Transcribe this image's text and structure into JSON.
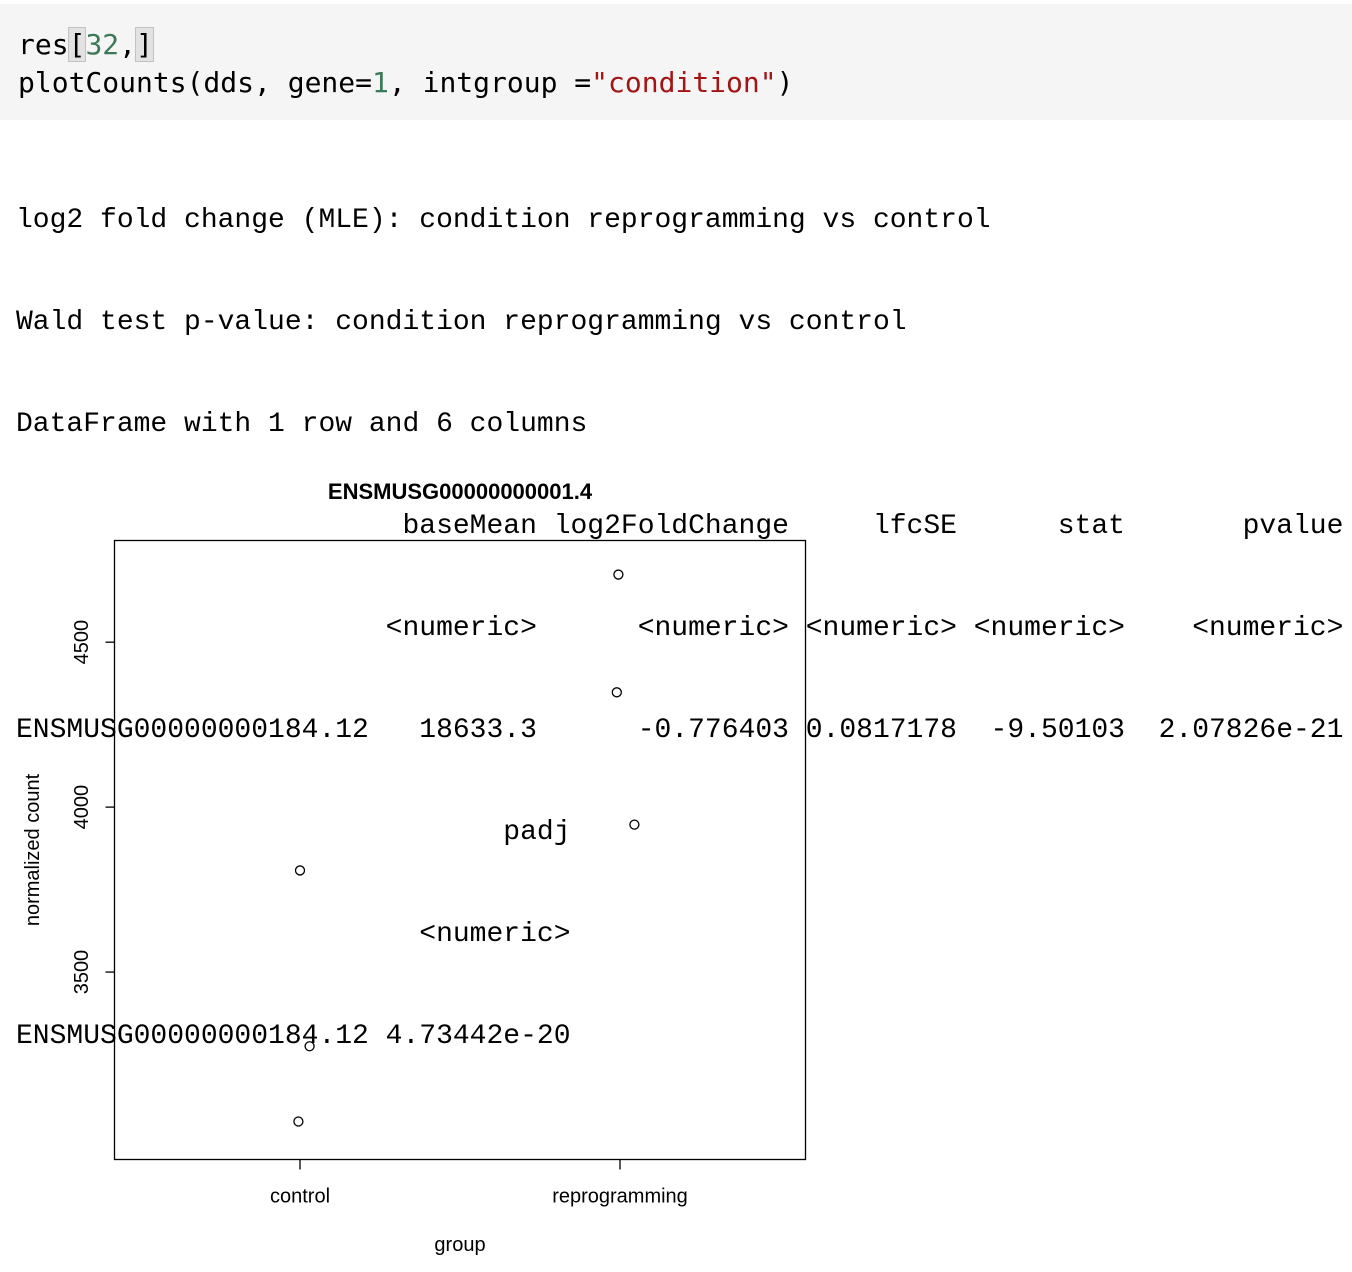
{
  "code": {
    "line1": {
      "ident": "res",
      "open": "[",
      "number": "32",
      "comma": ",",
      "close": "]"
    },
    "line2": {
      "prefix": "plotCounts(dds, gene=",
      "number": "1",
      "middle": ", intgroup =",
      "string": "\"condition\"",
      "suffix": ")"
    }
  },
  "output": {
    "lines": [
      "log2 fold change (MLE): condition reprogramming vs control",
      "Wald test p-value: condition reprogramming vs control",
      "DataFrame with 1 row and 6 columns",
      "                       baseMean log2FoldChange     lfcSE      stat       pvalue",
      "                      <numeric>      <numeric> <numeric> <numeric>    <numeric>",
      "ENSMUSG00000000184.12   18633.3      -0.776403 0.0817178  -9.50103  2.07826e-21",
      "                             padj",
      "                        <numeric>",
      "ENSMUSG00000000184.12 4.73442e-20"
    ]
  },
  "chart_data": {
    "type": "scatter",
    "title": "ENSMUSG00000000001.4",
    "xlabel": "group",
    "ylabel": "normalized count",
    "categories": [
      "control",
      "reprogramming"
    ],
    "yticks": [
      3500,
      4000,
      4500
    ],
    "ylim": [
      3000,
      4740
    ],
    "points": [
      {
        "group": "control",
        "jitter": 0.0,
        "y": 3808
      },
      {
        "group": "control",
        "jitter": 0.03,
        "y": 3275
      },
      {
        "group": "control",
        "jitter": -0.005,
        "y": 3047
      },
      {
        "group": "reprogramming",
        "jitter": -0.005,
        "y": 4705
      },
      {
        "group": "reprogramming",
        "jitter": -0.01,
        "y": 4348
      },
      {
        "group": "reprogramming",
        "jitter": 0.045,
        "y": 3947
      }
    ]
  }
}
